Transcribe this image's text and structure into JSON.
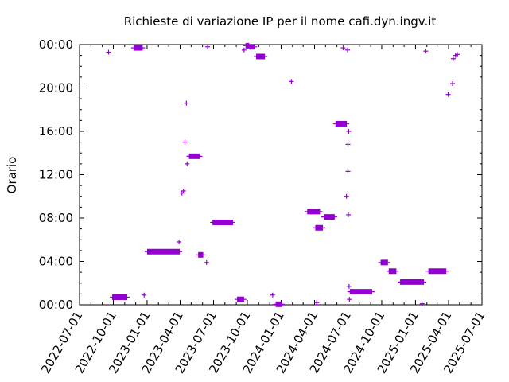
{
  "chart_data": {
    "type": "scatter",
    "title": "Richieste di variazione IP per il nome cafi.dyn.ingv.it",
    "xlabel": "",
    "ylabel": "Orario",
    "xlim": [
      "2022-07-01",
      "2025-07-01"
    ],
    "ylim": [
      0,
      24
    ],
    "x_tick_labels": [
      "2022-07-01",
      "2022-10-01",
      "2023-01-01",
      "2023-04-01",
      "2023-07-01",
      "2023-10-01",
      "2024-01-01",
      "2024-04-01",
      "2024-07-01",
      "2024-10-01",
      "2025-01-01",
      "2025-04-01",
      "2025-07-01"
    ],
    "y_tick_labels": [
      "00:00",
      "04:00",
      "08:00",
      "12:00",
      "16:00",
      "20:00",
      "00:00"
    ],
    "y_tick_values": [
      0,
      4,
      8,
      12,
      16,
      20,
      24
    ],
    "grid": false,
    "legend": "none",
    "color": "#9400d3",
    "segments": [
      {
        "x_start": "2022-09-28",
        "x_end": "2022-11-08",
        "y": 0.7
      },
      {
        "x_start": "2022-11-25",
        "x_end": "2022-12-20",
        "y": 23.7
      },
      {
        "x_start": "2023-01-01",
        "x_end": "2023-03-31",
        "y": 4.9
      },
      {
        "x_start": "2023-04-25",
        "x_end": "2023-05-25",
        "y": 13.7
      },
      {
        "x_start": "2023-05-20",
        "x_end": "2023-06-03",
        "y": 4.6
      },
      {
        "x_start": "2023-06-28",
        "x_end": "2023-08-23",
        "y": 7.6
      },
      {
        "x_start": "2023-09-03",
        "x_end": "2023-09-22",
        "y": 0.5
      },
      {
        "x_start": "2023-09-26",
        "x_end": "2023-10-06",
        "y": 23.9
      },
      {
        "x_start": "2023-10-06",
        "x_end": "2023-10-21",
        "y": 23.8
      },
      {
        "x_start": "2023-10-25",
        "x_end": "2023-11-18",
        "y": 22.9
      },
      {
        "x_start": "2023-12-17",
        "x_end": "2024-01-04",
        "y": 0.05
      },
      {
        "x_start": "2024-03-12",
        "x_end": "2024-04-16",
        "y": 8.6
      },
      {
        "x_start": "2024-04-03",
        "x_end": "2024-04-24",
        "y": 7.1
      },
      {
        "x_start": "2024-04-26",
        "x_end": "2024-05-26",
        "y": 8.1
      },
      {
        "x_start": "2024-05-28",
        "x_end": "2024-06-28",
        "y": 16.7
      },
      {
        "x_start": "2024-07-06",
        "x_end": "2024-09-05",
        "y": 1.2
      },
      {
        "x_start": "2024-09-28",
        "x_end": "2024-10-18",
        "y": 3.9
      },
      {
        "x_start": "2024-10-20",
        "x_end": "2024-11-10",
        "y": 3.1
      },
      {
        "x_start": "2024-11-20",
        "x_end": "2025-01-24",
        "y": 2.1
      },
      {
        "x_start": "2025-02-05",
        "x_end": "2025-03-26",
        "y": 3.1
      }
    ],
    "points": [
      {
        "x": "2022-09-18",
        "y": 23.3
      },
      {
        "x": "2022-12-24",
        "y": 0.9
      },
      {
        "x": "2023-03-29",
        "y": 5.8
      },
      {
        "x": "2023-04-06",
        "y": 10.3
      },
      {
        "x": "2023-04-10",
        "y": 10.5
      },
      {
        "x": "2023-04-14",
        "y": 15.0
      },
      {
        "x": "2023-04-18",
        "y": 18.6
      },
      {
        "x": "2023-04-20",
        "y": 13.0
      },
      {
        "x": "2023-06-12",
        "y": 3.9
      },
      {
        "x": "2023-06-15",
        "y": 23.8
      },
      {
        "x": "2023-09-22",
        "y": 23.5
      },
      {
        "x": "2023-12-09",
        "y": 0.9
      },
      {
        "x": "2024-01-29",
        "y": 20.6
      },
      {
        "x": "2024-04-07",
        "y": 0.2
      },
      {
        "x": "2024-06-18",
        "y": 23.7
      },
      {
        "x": "2024-06-30",
        "y": 23.5
      },
      {
        "x": "2024-07-03",
        "y": 16.0
      },
      {
        "x": "2024-07-01",
        "y": 14.8
      },
      {
        "x": "2024-07-01",
        "y": 12.3
      },
      {
        "x": "2024-06-27",
        "y": 10.0
      },
      {
        "x": "2024-07-02",
        "y": 8.3
      },
      {
        "x": "2024-07-04",
        "y": 1.7
      },
      {
        "x": "2024-07-05",
        "y": 0.5
      },
      {
        "x": "2025-01-19",
        "y": 0.1
      },
      {
        "x": "2025-01-29",
        "y": 23.4
      },
      {
        "x": "2025-03-31",
        "y": 19.4
      },
      {
        "x": "2025-04-12",
        "y": 20.4
      },
      {
        "x": "2025-04-14",
        "y": 22.7
      },
      {
        "x": "2025-04-20",
        "y": 23.0
      },
      {
        "x": "2025-04-25",
        "y": 23.1
      }
    ]
  }
}
